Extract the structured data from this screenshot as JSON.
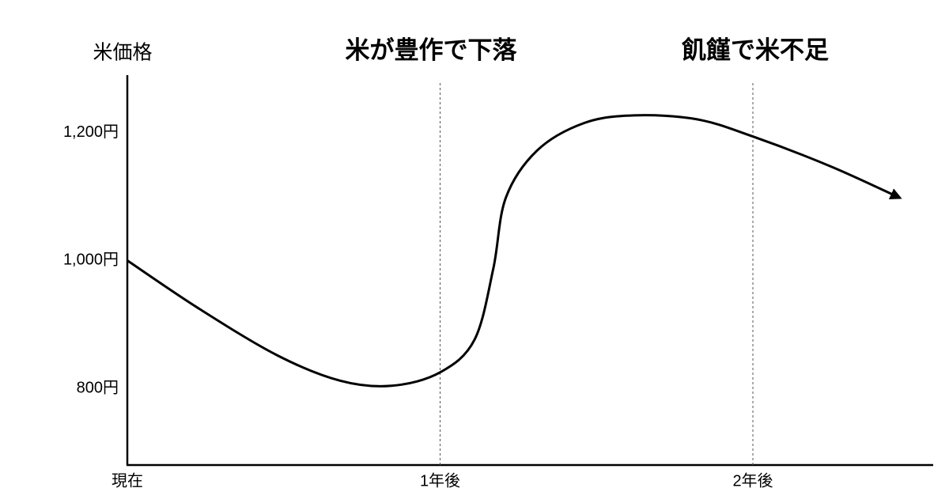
{
  "chart_data": {
    "type": "line",
    "y_label": "米価格",
    "annotations": [
      {
        "text": "米が豊作で下落",
        "color": "#ee2c2c"
      },
      {
        "text": "飢饉で米不足",
        "color": "#1c1cd0"
      }
    ],
    "x": [
      0,
      0.225,
      0.478,
      0.68,
      0.845,
      1.0,
      1.11,
      1.17,
      1.21,
      1.31,
      1.46,
      1.62,
      1.82,
      2.0,
      2.25,
      2.47
    ],
    "series": [
      {
        "color": "#000000",
        "values": [
          1000,
          926,
          852,
          812,
          804,
          825,
          876,
          987,
          1098,
          1172,
          1215,
          1227,
          1221,
          1194,
          1147,
          1098
        ]
      }
    ],
    "xlim": [
      0,
      2.58
    ],
    "xticks": [
      {
        "value": 0,
        "label": "現在"
      },
      {
        "value": 1,
        "label": "1年後"
      },
      {
        "value": 2,
        "label": "2年後"
      }
    ],
    "ylim": [
      680,
      1290
    ],
    "yticks": [
      {
        "value": 800,
        "label": "800円"
      },
      {
        "value": 1000,
        "label": "1,000円"
      },
      {
        "value": 1200,
        "label": "1,200円"
      }
    ],
    "xgrid": true,
    "arrow_end": true
  }
}
